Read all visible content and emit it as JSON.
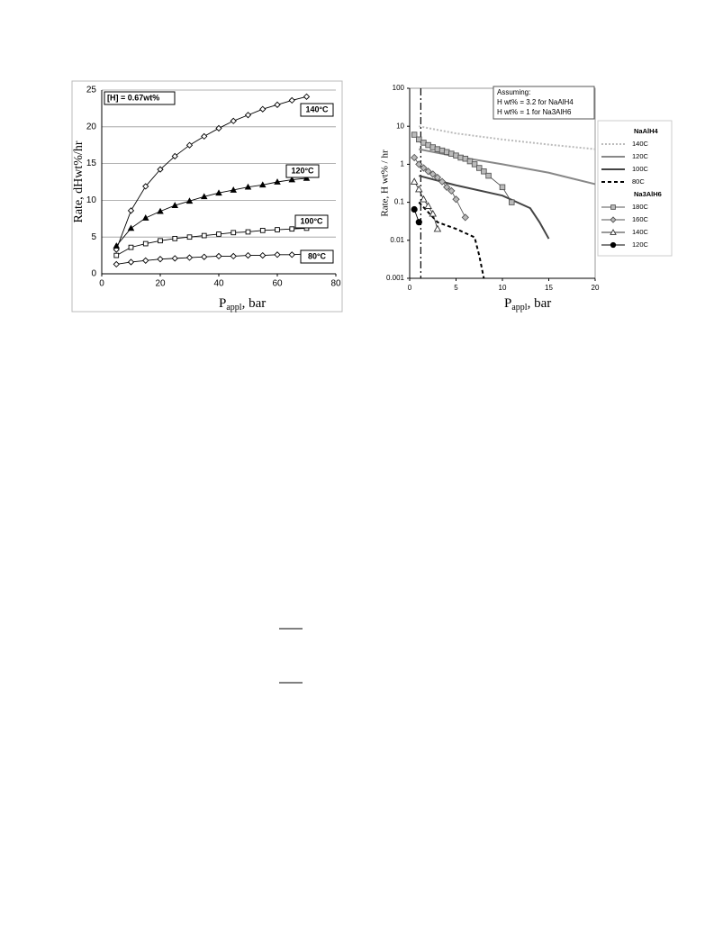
{
  "chart_data": [
    {
      "type": "line",
      "y_label": "Rate, dHwt%/hr",
      "x_label": "P",
      "x_label_sub": "appl",
      "x_label_suffix": ", bar",
      "annotation": "[H] = 0.67wt%",
      "x": [
        5,
        10,
        15,
        20,
        25,
        30,
        35,
        40,
        45,
        50,
        55,
        60,
        65,
        70
      ],
      "series": [
        {
          "name": "140°C",
          "color": "#000000",
          "marker": "diamond",
          "marker_fill": "#ffffff",
          "values": [
            3.3,
            8.6,
            11.9,
            14.2,
            16.0,
            17.5,
            18.7,
            19.8,
            20.8,
            21.6,
            22.4,
            23.0,
            23.6,
            24.1
          ]
        },
        {
          "name": "120°C",
          "color": "#000000",
          "marker": "triangle",
          "marker_fill": "#000000",
          "values": [
            3.8,
            6.2,
            7.6,
            8.5,
            9.3,
            9.9,
            10.5,
            11.0,
            11.4,
            11.8,
            12.1,
            12.5,
            12.8,
            13.0
          ]
        },
        {
          "name": "100°C",
          "color": "#000000",
          "marker": "square",
          "marker_fill": "#ffffff",
          "values": [
            2.5,
            3.6,
            4.1,
            4.5,
            4.8,
            5.0,
            5.2,
            5.4,
            5.6,
            5.7,
            5.9,
            6.0,
            6.1,
            6.2
          ]
        },
        {
          "name": "80°C",
          "color": "#000000",
          "marker": "diamond",
          "marker_fill": "#ffffff",
          "values": [
            1.3,
            1.6,
            1.8,
            2.0,
            2.1,
            2.2,
            2.3,
            2.4,
            2.4,
            2.5,
            2.5,
            2.6,
            2.6,
            2.7
          ]
        }
      ],
      "xlim": [
        0,
        80
      ],
      "xticks": [
        0,
        20,
        40,
        60,
        80
      ],
      "ylim": [
        0,
        25
      ],
      "yticks": [
        0,
        5,
        10,
        15,
        20,
        25
      ],
      "grid": true,
      "log_y": false
    },
    {
      "type": "line",
      "y_label": "Rate, H wt% / hr",
      "x_label": "P",
      "x_label_sub": "appl",
      "x_label_suffix": ", bar",
      "annotation_lines": [
        "Assuming:",
        "H wt% = 3.2 for NaAlH4",
        "H wt% = 1 for Na3AlH6"
      ],
      "vline_x": 1.2,
      "series_groups": [
        {
          "name": "NaAlH4",
          "series": [
            {
              "name": "140C",
              "color": "#bbbbbb",
              "dash": "2,2",
              "marker": null,
              "x": [
                1,
                5,
                10,
                15,
                20
              ],
              "values": [
                10,
                6.5,
                4.5,
                3.3,
                2.5
              ]
            },
            {
              "name": "120C",
              "color": "#888888",
              "dash": null,
              "marker": null,
              "x": [
                1,
                5,
                10,
                15,
                20
              ],
              "values": [
                2.5,
                1.6,
                1.0,
                0.6,
                0.3
              ]
            },
            {
              "name": "100C",
              "color": "#444444",
              "dash": null,
              "marker": null,
              "x": [
                1,
                5,
                10,
                13,
                14,
                15
              ],
              "values": [
                0.5,
                0.28,
                0.15,
                0.07,
                0.03,
                0.011
              ]
            },
            {
              "name": "80C",
              "color": "#000000",
              "dash": "4,3",
              "marker": null,
              "x": [
                1,
                3,
                5,
                7,
                7.5,
                8
              ],
              "values": [
                0.1,
                0.03,
                0.02,
                0.012,
                0.004,
                0.001
              ]
            }
          ]
        },
        {
          "name": "Na3AlH6",
          "series": [
            {
              "name": "180C",
              "color": "#555555",
              "dash": null,
              "marker": "square",
              "marker_fill": "#bbbbbb",
              "x": [
                0.5,
                1,
                1.5,
                2,
                2.5,
                3,
                3.5,
                4,
                4.5,
                5,
                5.5,
                6,
                6.5,
                7,
                7.5,
                8,
                8.5,
                10,
                11
              ],
              "values": [
                6,
                4.5,
                3.7,
                3.2,
                2.8,
                2.5,
                2.3,
                2.1,
                1.9,
                1.7,
                1.5,
                1.4,
                1.2,
                1.0,
                0.8,
                0.65,
                0.5,
                0.25,
                0.1
              ]
            },
            {
              "name": "160C",
              "color": "#555555",
              "dash": null,
              "marker": "diamond",
              "marker_fill": "#bbbbbb",
              "x": [
                0.5,
                1,
                1.5,
                2,
                2.5,
                3,
                3.5,
                4,
                4.5,
                5,
                6
              ],
              "values": [
                1.5,
                1.0,
                0.8,
                0.65,
                0.55,
                0.45,
                0.35,
                0.25,
                0.2,
                0.12,
                0.04
              ]
            },
            {
              "name": "140C",
              "color": "#333333",
              "dash": null,
              "marker": "triangle",
              "marker_fill": "#ffffff",
              "x": [
                0.5,
                1,
                1.5,
                2,
                2.5,
                3
              ],
              "values": [
                0.35,
                0.22,
                0.12,
                0.08,
                0.05,
                0.02
              ]
            },
            {
              "name": "120C",
              "color": "#000000",
              "dash": null,
              "marker": "circle",
              "marker_fill": "#000000",
              "x": [
                0.5,
                1
              ],
              "values": [
                0.065,
                0.03
              ]
            }
          ]
        }
      ],
      "xlim": [
        0,
        20
      ],
      "xticks": [
        0,
        5,
        10,
        15,
        20
      ],
      "ylim": [
        0.001,
        100
      ],
      "yticks": [
        0.001,
        0.01,
        0.1,
        1,
        10,
        100
      ],
      "grid": false,
      "log_y": true
    }
  ]
}
